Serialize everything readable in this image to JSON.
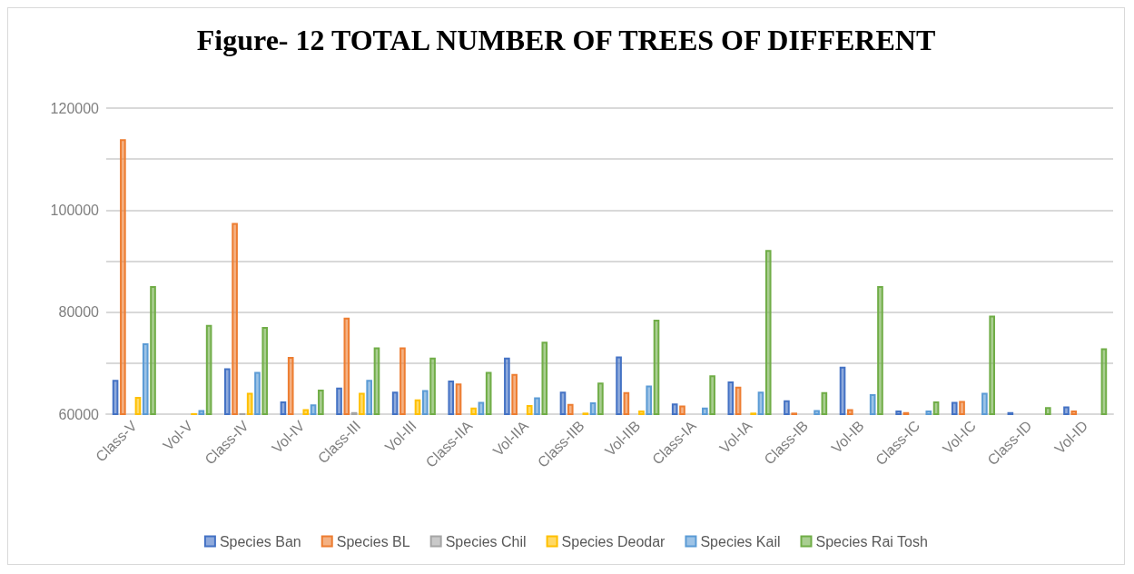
{
  "chart_data": {
    "type": "bar",
    "title": "Figure- 12 TOTAL NUMBER OF TREES OF DIFFERENT",
    "categories": [
      "Class-V",
      "Vol-V",
      "Class-IV",
      "Vol-IV",
      "Class-III",
      "Vol-III",
      "Class-IIA",
      "Vol-IIA",
      "Class-IIB",
      "Vol-IIB",
      "Class-IA",
      "Vol-IA",
      "Class-IB",
      "Vol-IB",
      "Class-IC",
      "Vol-IC",
      "Class-ID",
      "Vol-ID"
    ],
    "series": [
      {
        "name": "Species Ban",
        "color": "#4472c4",
        "values": [
          66700,
          null,
          69000,
          62500,
          65200,
          64400,
          66600,
          71100,
          64400,
          71300,
          62100,
          66400,
          62700,
          69300,
          60700,
          62400,
          60400,
          61500
        ]
      },
      {
        "name": "Species BL",
        "color": "#ed7d31",
        "values": [
          113900,
          null,
          97500,
          71200,
          78900,
          73100,
          66000,
          67900,
          62000,
          64300,
          61700,
          65400,
          60300,
          61000,
          60400,
          62600,
          60100,
          60700
        ]
      },
      {
        "name": "Species Chil",
        "color": "#a5a5a5",
        "values": [
          null,
          null,
          60200,
          60100,
          60400,
          60100,
          null,
          null,
          null,
          null,
          null,
          null,
          null,
          null,
          null,
          null,
          null,
          null
        ]
      },
      {
        "name": "Species Deodar",
        "color": "#ffc000",
        "values": [
          63400,
          60200,
          64200,
          61000,
          64200,
          62900,
          61300,
          61800,
          60300,
          60700,
          60100,
          60300,
          null,
          null,
          null,
          null,
          null,
          null
        ]
      },
      {
        "name": "Species Kail",
        "color": "#5b9bd5",
        "values": [
          73900,
          60800,
          68300,
          61900,
          66700,
          64700,
          62400,
          63300,
          62300,
          65600,
          61300,
          64400,
          60800,
          63900,
          60700,
          64200,
          null,
          null
        ]
      },
      {
        "name": "Species Rai Tosh",
        "color": "#70ad47",
        "values": [
          85100,
          77500,
          77100,
          64800,
          73100,
          71100,
          68300,
          74200,
          66200,
          78500,
          67600,
          92200,
          64300,
          85100,
          62500,
          79300,
          61400,
          72900
        ]
      }
    ],
    "ylim": [
      60000,
      120000
    ],
    "yticks": [
      60000,
      {
        "value": 70000,
        "label": null
      },
      80000,
      {
        "value": 90000,
        "label": null
      },
      100000,
      {
        "value": 110000,
        "label": null
      },
      120000
    ],
    "grid": "y",
    "legend": "bottom"
  }
}
